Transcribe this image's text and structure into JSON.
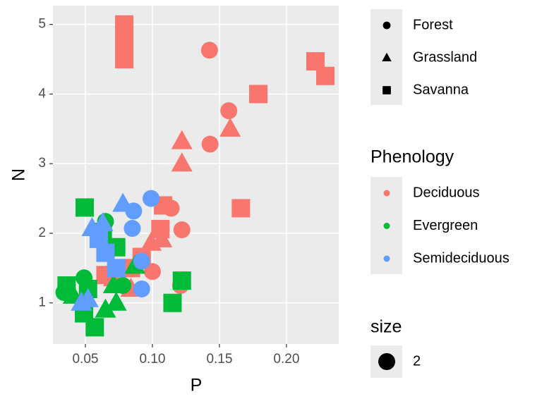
{
  "chart_data": {
    "type": "scatter",
    "x_label": "P",
    "y_label": "N",
    "xlim": [
      0.0258,
      0.239
    ],
    "ylim": [
      0.41,
      5.27
    ],
    "xticks": [
      0.05,
      {
        "value": 0.1,
        "label": "0.10"
      },
      0.15,
      {
        "value": 0.2,
        "label": "0.20"
      }
    ],
    "yticks": [
      1,
      2,
      3,
      4,
      5
    ],
    "grid": true,
    "shape_legend": {
      "entries": [
        "Forest",
        "Grassland",
        "Savanna"
      ]
    },
    "size_legend": {
      "title": "size",
      "values": [
        2
      ]
    },
    "color_legend_title": "Phenology",
    "series": [
      {
        "name": "Deciduous",
        "color": "#F8766D",
        "x": [
          0.079,
          0.079,
          0.079,
          0.1426,
          0.2216,
          0.229,
          0.179,
          0.157,
          0.158,
          0.122,
          0.122,
          0.143,
          0.166,
          0.108,
          0.114,
          0.122,
          0.106,
          0.107,
          0.099,
          0.092,
          0.1,
          0.084,
          0.073,
          0.071,
          0.084,
          0.121,
          0.065
        ],
        "y": [
          5.0,
          4.75,
          4.5,
          4.63,
          4.47,
          4.26,
          4.0,
          3.76,
          3.5,
          3.32,
          3.0,
          3.28,
          2.36,
          2.4,
          2.36,
          2.05,
          2.06,
          1.91,
          1.86,
          1.66,
          1.45,
          1.5,
          1.8,
          1.35,
          1.2,
          1.25,
          1.4
        ],
        "shape": [
          "Savanna",
          "Savanna",
          "Savanna",
          "Forest",
          "Savanna",
          "Savanna",
          "Savanna",
          "Forest",
          "Grassland",
          "Grassland",
          "Grassland",
          "Forest",
          "Savanna",
          "Savanna",
          "Forest",
          "Forest",
          "Savanna",
          "Grassland",
          "Grassland",
          "Savanna",
          "Forest",
          "Savanna",
          "Forest",
          "Grassland",
          "Grassland",
          "Forest",
          "Savanna"
        ]
      },
      {
        "name": "Evergreen",
        "color": "#00BA38",
        "x": [
          0.0495,
          0.065,
          0.063,
          0.073,
          0.087,
          0.122,
          0.115,
          0.036,
          0.034,
          0.049,
          0.041,
          0.052,
          0.049,
          0.057,
          0.065,
          0.073,
          0.078,
          0.071
        ],
        "y": [
          2.37,
          2.17,
          2.02,
          1.8,
          1.53,
          1.32,
          1.0,
          1.25,
          1.15,
          1.36,
          1.1,
          1.2,
          0.85,
          0.65,
          0.9,
          1.0,
          1.25,
          1.25
        ],
        "shape": [
          "Savanna",
          "Forest",
          "Savanna",
          "Savanna",
          "Grassland",
          "Savanna",
          "Savanna",
          "Savanna",
          "Forest",
          "Forest",
          "Grassland",
          "Savanna",
          "Savanna",
          "Savanna",
          "Grassland",
          "Grassland",
          "Forest",
          "Grassland"
        ]
      },
      {
        "name": "Semideciduous",
        "color": "#619CFF",
        "x": [
          0.078,
          0.086,
          0.085,
          0.099,
          0.055,
          0.063,
          0.06,
          0.065,
          0.092,
          0.047,
          0.052,
          0.092,
          0.073
        ],
        "y": [
          2.42,
          2.32,
          2.07,
          2.5,
          2.07,
          2.14,
          1.92,
          1.72,
          1.2,
          1.0,
          1.05,
          1.6,
          1.5
        ],
        "shape": [
          "Grassland",
          "Forest",
          "Forest",
          "Forest",
          "Grassland",
          "Grassland",
          "Savanna",
          "Savanna",
          "Forest",
          "Grassland",
          "Grassland",
          "Forest",
          "Savanna"
        ]
      }
    ]
  }
}
